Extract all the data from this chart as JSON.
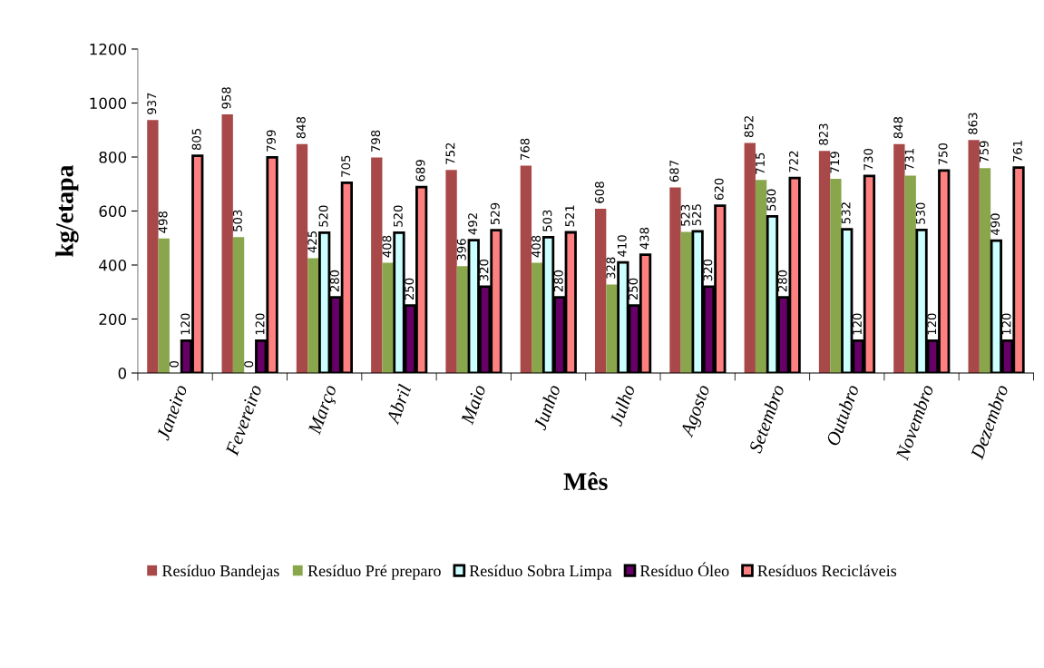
{
  "chart_data": {
    "type": "bar",
    "xlabel": "Mês",
    "ylabel": "kg/etapa",
    "categories": [
      "Janeiro",
      "Fevereiro",
      "Março",
      "Abril",
      "Maio",
      "Junho",
      "Julho",
      "Agosto",
      "Setembro",
      "Outubro",
      "Novembro",
      "Dezembro"
    ],
    "series": [
      {
        "name": "Resíduo Bandejas",
        "color": "#a84848",
        "values": [
          937,
          958,
          848,
          798,
          752,
          768,
          608,
          687,
          852,
          823,
          848,
          863
        ]
      },
      {
        "name": "Resíduo Pré preparo",
        "color": "#8aa64c",
        "values": [
          498,
          503,
          425,
          408,
          396,
          408,
          328,
          523,
          715,
          719,
          731,
          759
        ]
      },
      {
        "name": "Resíduo Sobra Limpa",
        "color": "#ccffff",
        "values": [
          0,
          0,
          520,
          520,
          492,
          503,
          410,
          525,
          580,
          532,
          530,
          490
        ]
      },
      {
        "name": "Resíduo Óleo",
        "color": "#660066",
        "values": [
          120,
          120,
          280,
          250,
          320,
          280,
          250,
          320,
          280,
          120,
          120,
          120
        ]
      },
      {
        "name": "Resíduos Recicláveis",
        "color": "#ff8080",
        "values": [
          805,
          799,
          705,
          689,
          529,
          521,
          438,
          620,
          722,
          730,
          750,
          761
        ]
      }
    ],
    "ylim": [
      0,
      1200
    ],
    "yticks": [
      0,
      200,
      400,
      600,
      800,
      1000,
      1200
    ],
    "grid": false,
    "legend": "bottom",
    "data_labels": true
  }
}
